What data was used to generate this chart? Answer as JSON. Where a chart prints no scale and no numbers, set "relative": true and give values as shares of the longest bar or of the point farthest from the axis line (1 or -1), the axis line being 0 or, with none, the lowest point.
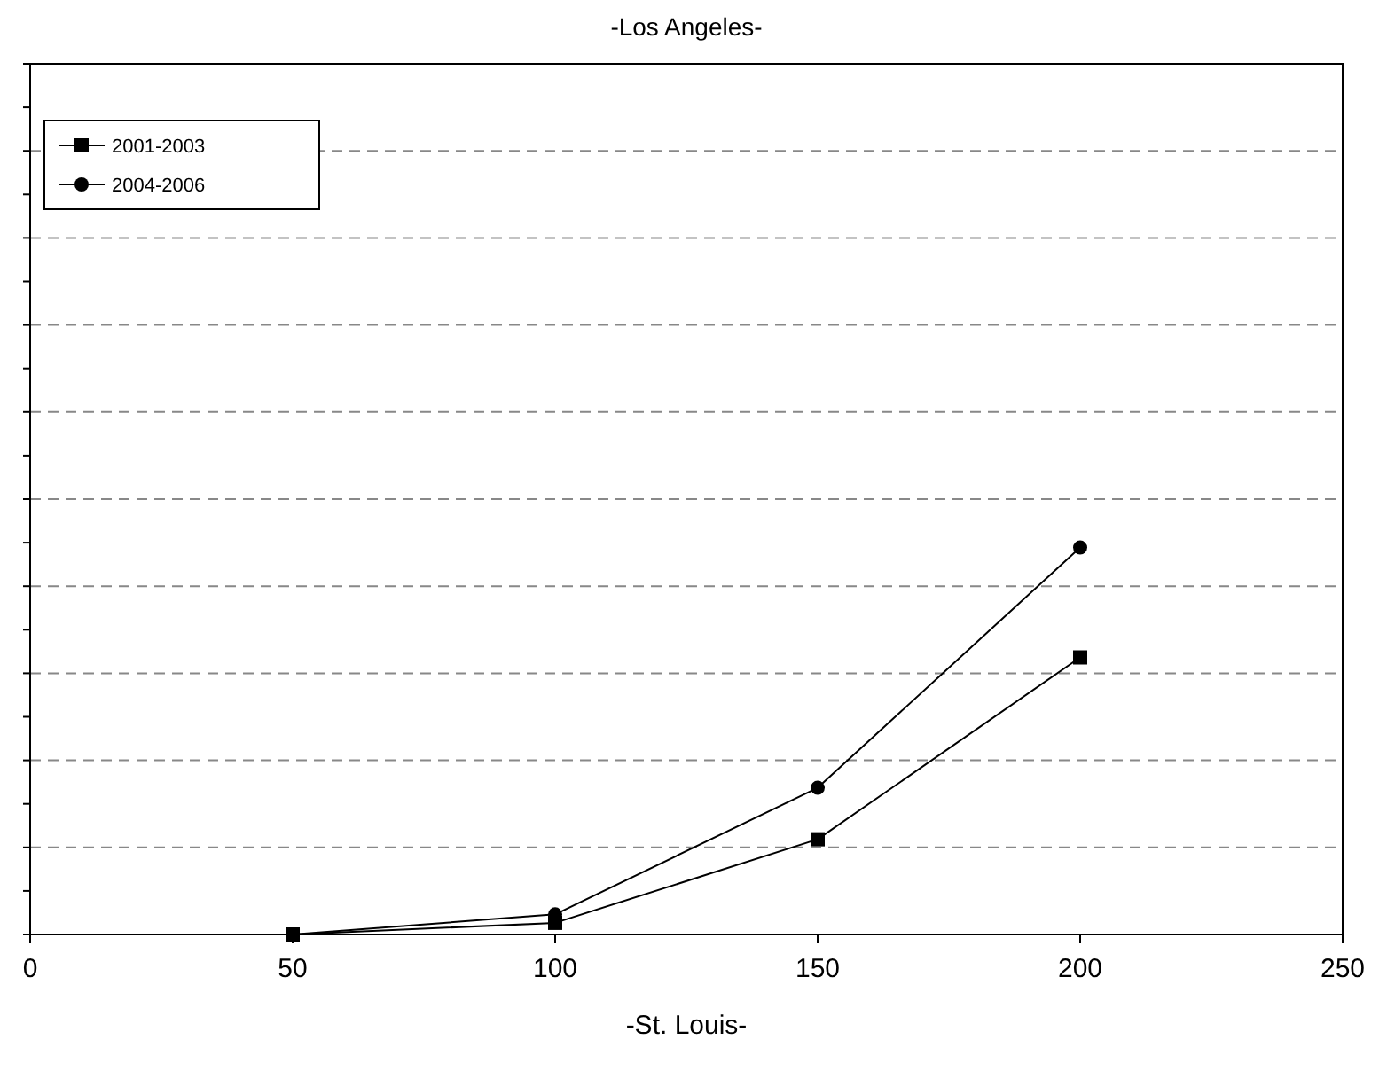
{
  "chart_data": {
    "type": "line",
    "title": "-Los Angeles-",
    "xlabel": "-St. Louis-",
    "relative": true,
    "x": [
      50,
      100,
      150,
      200
    ],
    "xlim": [
      0,
      250
    ],
    "xticks": [
      0,
      50,
      100,
      150,
      200,
      250
    ],
    "grid": "y",
    "legend": "top left",
    "line_style": "solid",
    "series": [
      {
        "name": "2001-2003",
        "color": "#000000",
        "marker": "square",
        "values": [
          0,
          0.03,
          0.246,
          0.716
        ]
      },
      {
        "name": "2004-2006",
        "color": "#000000",
        "marker": "circle",
        "values": [
          0,
          0.052,
          0.379,
          1
        ]
      }
    ]
  }
}
